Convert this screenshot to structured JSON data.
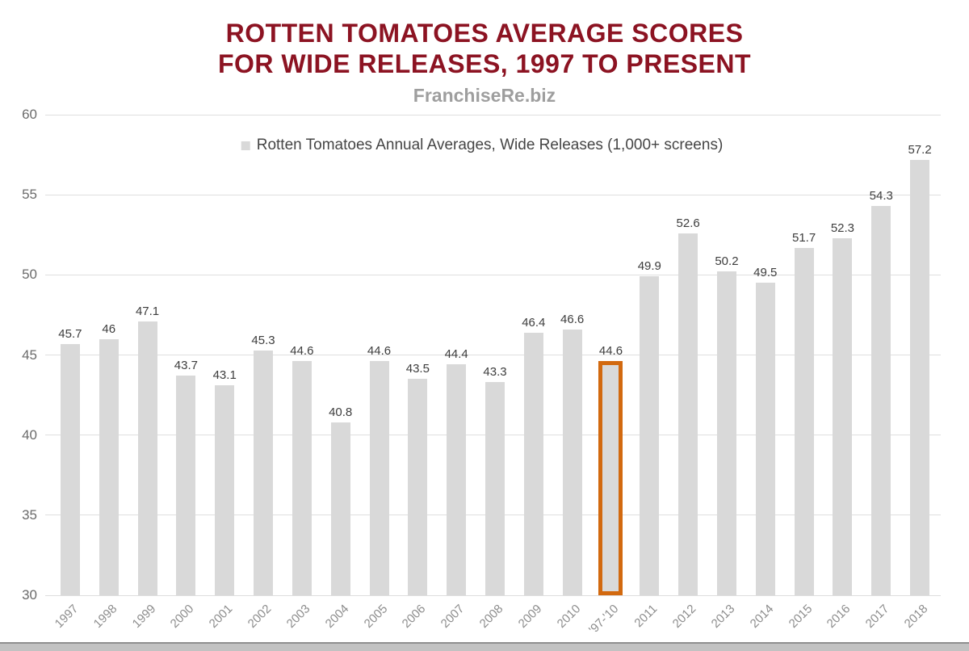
{
  "header": {
    "title_line1": "ROTTEN TOMATOES AVERAGE SCORES",
    "title_line2": "FOR WIDE RELEASES, 1997 TO PRESENT",
    "source": "FranchiseRe.biz",
    "title_color": "#8C1322",
    "source_color": "#9E9E9E"
  },
  "legend": {
    "label": "Rotten Tomatoes Annual Averages, Wide Releases (1,000+ screens)",
    "marker_color": "#D9D9D9"
  },
  "chart_data": {
    "type": "bar",
    "title": "Rotten Tomatoes Average Scores for Wide Releases, 1997 to Present",
    "categories": [
      "1997",
      "1998",
      "1999",
      "2000",
      "2001",
      "2002",
      "2003",
      "2004",
      "2005",
      "2006",
      "2007",
      "2008",
      "2009",
      "2010",
      "'97-'10",
      "2011",
      "2012",
      "2013",
      "2014",
      "2015",
      "2016",
      "2017",
      "2018"
    ],
    "values": [
      45.7,
      46,
      47.1,
      43.7,
      43.1,
      45.3,
      44.6,
      40.8,
      44.6,
      43.5,
      44.4,
      43.3,
      46.4,
      46.6,
      44.6,
      49.9,
      52.6,
      50.2,
      49.5,
      51.7,
      52.3,
      54.3,
      57.2
    ],
    "labels": [
      "45.7",
      "46",
      "47.1",
      "43.7",
      "43.1",
      "45.3",
      "44.6",
      "40.8",
      "44.6",
      "43.5",
      "44.4",
      "43.3",
      "46.4",
      "46.6",
      "44.6",
      "49.9",
      "52.6",
      "50.2",
      "49.5",
      "51.7",
      "52.3",
      "54.3",
      "57.2"
    ],
    "highlight_index": 14,
    "highlight_color": "#D2690F",
    "bar_color": "#D9D9D9",
    "grid_color": "#DEDEDE",
    "ylim": [
      30,
      60
    ],
    "yticks": [
      30,
      35,
      40,
      45,
      50,
      55,
      60
    ],
    "grid": true,
    "legend": "Rotten Tomatoes Annual Averages, Wide Releases (1,000+ screens)",
    "legend_position": "top-center",
    "xlabel": "",
    "ylabel": ""
  },
  "footer": {
    "strip_color": "#C2C2C2",
    "strip_border": "#8F8F8F"
  }
}
